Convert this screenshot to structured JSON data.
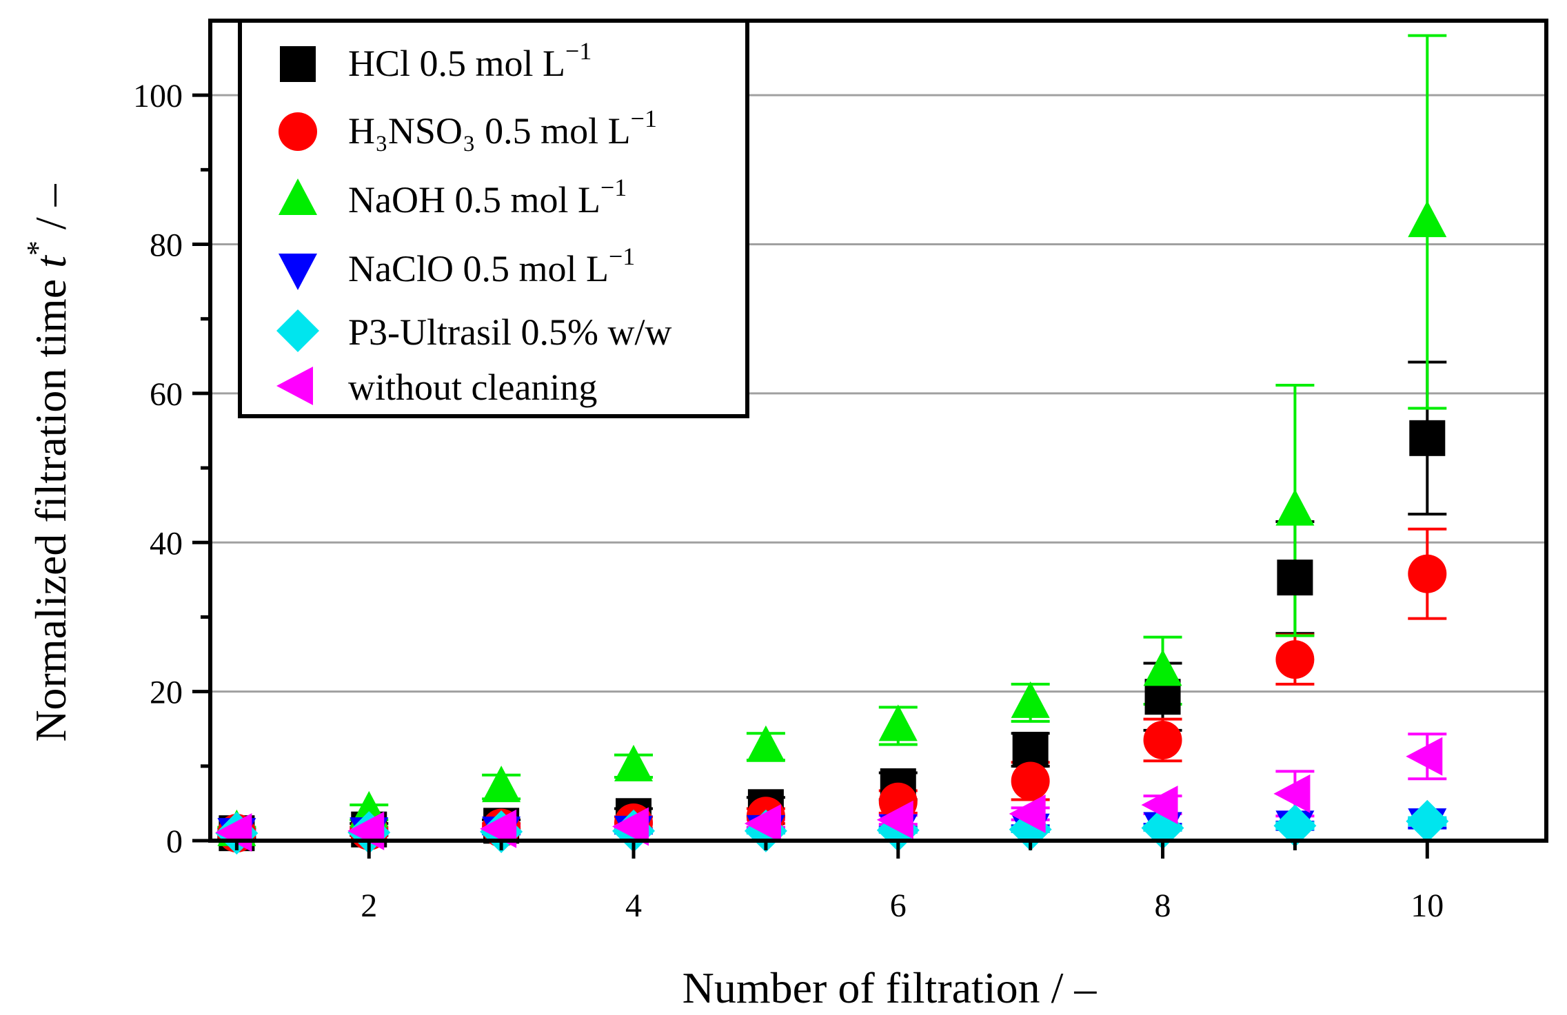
{
  "chart_data": {
    "type": "scatter",
    "xlabel": "Number of filtration / –",
    "ylabel": {
      "main": "Normalized filtration time",
      "symbol": "t",
      "sup": "*",
      "unit": " / –"
    },
    "xlim": [
      0.8,
      10.9
    ],
    "ylim": [
      0,
      110
    ],
    "xticks": [
      2,
      4,
      6,
      8,
      10
    ],
    "xtick_labels": [
      "2",
      "4",
      "6",
      "8",
      "10"
    ],
    "yticks": [
      0,
      20,
      40,
      60,
      80,
      100
    ],
    "ytick_labels": [
      "0",
      "20",
      "40",
      "60",
      "80",
      "100"
    ],
    "grid": "horizontal",
    "legend_position": "top-left",
    "series": [
      {
        "name": "HCl 0.5 mol L",
        "name_sup": "−1",
        "color": "#000000",
        "marker": "square",
        "x": [
          1,
          2,
          3,
          4,
          5,
          6,
          7,
          8,
          9,
          10
        ],
        "y": [
          1.0,
          1.5,
          2.0,
          3.3,
          4.5,
          7.3,
          12.2,
          19.3,
          35.3,
          54.0
        ],
        "err": [
          0.6,
          0.8,
          0.8,
          1.0,
          1.3,
          1.8,
          2.2,
          4.5,
          7.5,
          10.2
        ],
        "err_color": "#000000"
      },
      {
        "name": "H₃NSO₃ 0.5 mol L",
        "name_sup": "−1",
        "color": "#ff0000",
        "marker": "circle",
        "x": [
          1,
          2,
          3,
          4,
          5,
          6,
          7,
          8,
          9,
          10
        ],
        "y": [
          1.0,
          1.3,
          1.7,
          2.4,
          3.3,
          5.2,
          8.0,
          13.5,
          24.3,
          35.8
        ],
        "err": [
          0.3,
          0.5,
          0.6,
          0.8,
          1.0,
          1.5,
          2.5,
          2.8,
          3.3,
          6.0
        ],
        "err_color": "#ff0000"
      },
      {
        "name": "NaOH 0.5 mol L",
        "name_sup": "−1",
        "color": "#00ee00",
        "marker": "triangle-up",
        "x": [
          1,
          2,
          3,
          4,
          5,
          6,
          7,
          8,
          9,
          10
        ],
        "y": [
          1.3,
          3.8,
          7.2,
          10.0,
          12.6,
          15.4,
          18.5,
          22.8,
          44.3,
          83.0
        ],
        "err": [
          0.5,
          1.0,
          1.6,
          1.5,
          1.8,
          2.5,
          2.5,
          4.5,
          16.8,
          25.0
        ],
        "err_color": "#00ee00"
      },
      {
        "name": "NaClO 0.5 mol L",
        "name_sup": "−1",
        "color": "#0000ff",
        "marker": "triangle-down",
        "x": [
          1,
          2,
          3,
          4,
          5,
          6,
          7,
          8,
          9,
          10
        ],
        "y": [
          1.0,
          1.1,
          1.2,
          1.3,
          1.4,
          1.5,
          1.6,
          1.8,
          2.0,
          2.3
        ],
        "err": [
          0.2,
          0.2,
          0.3,
          0.3,
          0.3,
          0.3,
          0.4,
          0.4,
          0.5,
          0.6
        ],
        "err_color": "#0000ff"
      },
      {
        "name": "P3-Ultrasil 0.5% w/w",
        "name_sup": "",
        "color": "#00e5ee",
        "marker": "diamond",
        "x": [
          1,
          2,
          3,
          4,
          5,
          6,
          7,
          8,
          9,
          10
        ],
        "y": [
          1.0,
          1.1,
          1.2,
          1.3,
          1.3,
          1.4,
          1.5,
          1.7,
          2.0,
          2.6
        ],
        "err": [
          0.2,
          0.2,
          0.2,
          0.2,
          0.3,
          0.3,
          0.3,
          0.3,
          0.4,
          0.5
        ],
        "err_color": "#00e5ee"
      },
      {
        "name": " without cleaning",
        "name_sup": "",
        "color": "#ff00ff",
        "marker": "triangle-left",
        "x": [
          1,
          2,
          3,
          4,
          5,
          6,
          7,
          8,
          9,
          10
        ],
        "y": [
          1.1,
          1.3,
          1.6,
          1.9,
          2.3,
          2.8,
          3.6,
          4.8,
          6.3,
          11.3
        ],
        "err": [
          0.3,
          0.3,
          0.4,
          0.4,
          0.5,
          0.6,
          0.8,
          1.2,
          3.0,
          3.0
        ],
        "err_color": "#ff00ff"
      }
    ]
  }
}
